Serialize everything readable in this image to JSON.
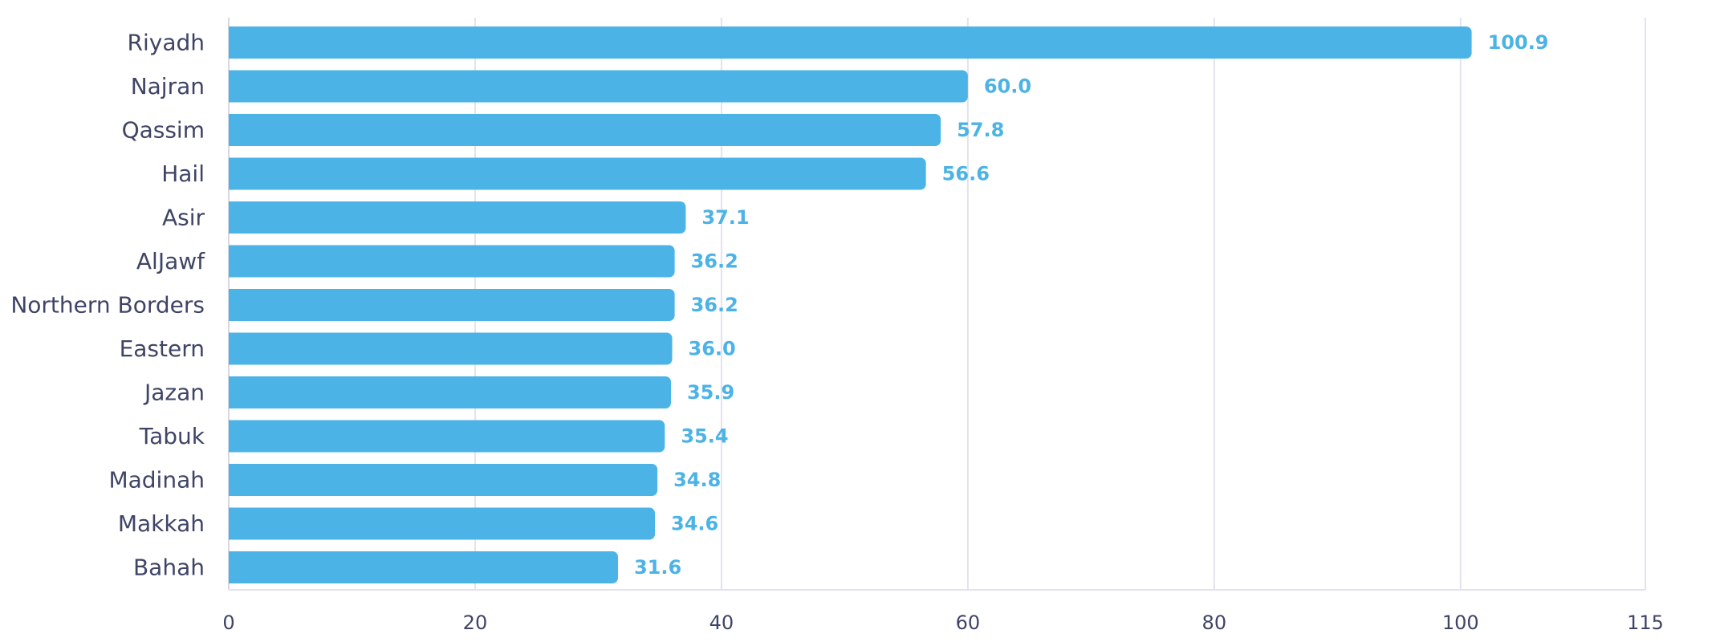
{
  "chart_data": {
    "type": "bar",
    "orientation": "horizontal",
    "categories": [
      "Riyadh",
      "Najran",
      "Qassim",
      "Hail",
      "Asir",
      "AlJawf",
      "Northern Borders",
      "Eastern",
      "Jazan",
      "Tabuk",
      "Madinah",
      "Makkah",
      "Bahah"
    ],
    "values": [
      100.9,
      60.0,
      57.8,
      56.6,
      37.1,
      36.2,
      36.2,
      36.0,
      35.9,
      35.4,
      34.8,
      34.6,
      31.6
    ],
    "value_labels": [
      "100.9",
      "60.0",
      "57.8",
      "56.6",
      "37.1",
      "36.2",
      "36.2",
      "36.0",
      "35.9",
      "35.4",
      "34.8",
      "34.6",
      "31.6"
    ],
    "xlim": [
      0,
      115
    ],
    "xticks": [
      0,
      20,
      40,
      60,
      80,
      100,
      115
    ],
    "xtick_labels": [
      "0",
      "20",
      "40",
      "60",
      "80",
      "100",
      "115"
    ],
    "grid": true,
    "title": "",
    "xlabel": "",
    "ylabel": "",
    "colors": {
      "bar": "#4cb3e6",
      "value_label": "#4cb3e6",
      "text": "#3f4466",
      "grid": "#e4e2ee"
    }
  }
}
